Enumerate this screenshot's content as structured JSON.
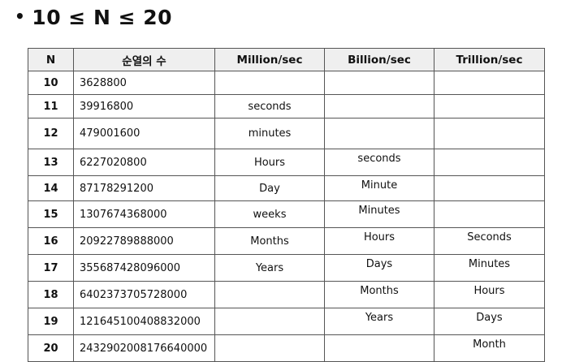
{
  "heading": {
    "bullet": "•",
    "text": "10 ≤ N ≤ 20"
  },
  "table": {
    "columns": [
      "N",
      "순열의 수",
      "Million/sec",
      "Billion/sec",
      "Trillion/sec"
    ],
    "rows": [
      {
        "n": "10",
        "perm": "3628800",
        "million": "",
        "billion": "",
        "trillion": ""
      },
      {
        "n": "11",
        "perm": "39916800",
        "million": "seconds",
        "billion": "",
        "trillion": ""
      },
      {
        "n": "12",
        "perm": "479001600",
        "million": "minutes",
        "billion": "",
        "trillion": ""
      },
      {
        "n": "13",
        "perm": "6227020800",
        "million": "Hours",
        "billion": "seconds",
        "trillion": ""
      },
      {
        "n": "14",
        "perm": "87178291200",
        "million": "Day",
        "billion": "Minute",
        "trillion": ""
      },
      {
        "n": "15",
        "perm": "1307674368000",
        "million": "weeks",
        "billion": "Minutes",
        "trillion": ""
      },
      {
        "n": "16",
        "perm": "20922789888000",
        "million": "Months",
        "billion": "Hours",
        "trillion": "Seconds"
      },
      {
        "n": "17",
        "perm": "355687428096000",
        "million": "Years",
        "billion": "Days",
        "trillion": "Minutes"
      },
      {
        "n": "18",
        "perm": "6402373705728000",
        "million": "",
        "billion": "Months",
        "trillion": "Hours"
      },
      {
        "n": "19",
        "perm": "121645100408832000",
        "million": "",
        "billion": "Years",
        "trillion": "Days"
      },
      {
        "n": "20",
        "perm": "2432902008176640000",
        "million": "",
        "billion": "",
        "trillion": "Month"
      }
    ]
  }
}
